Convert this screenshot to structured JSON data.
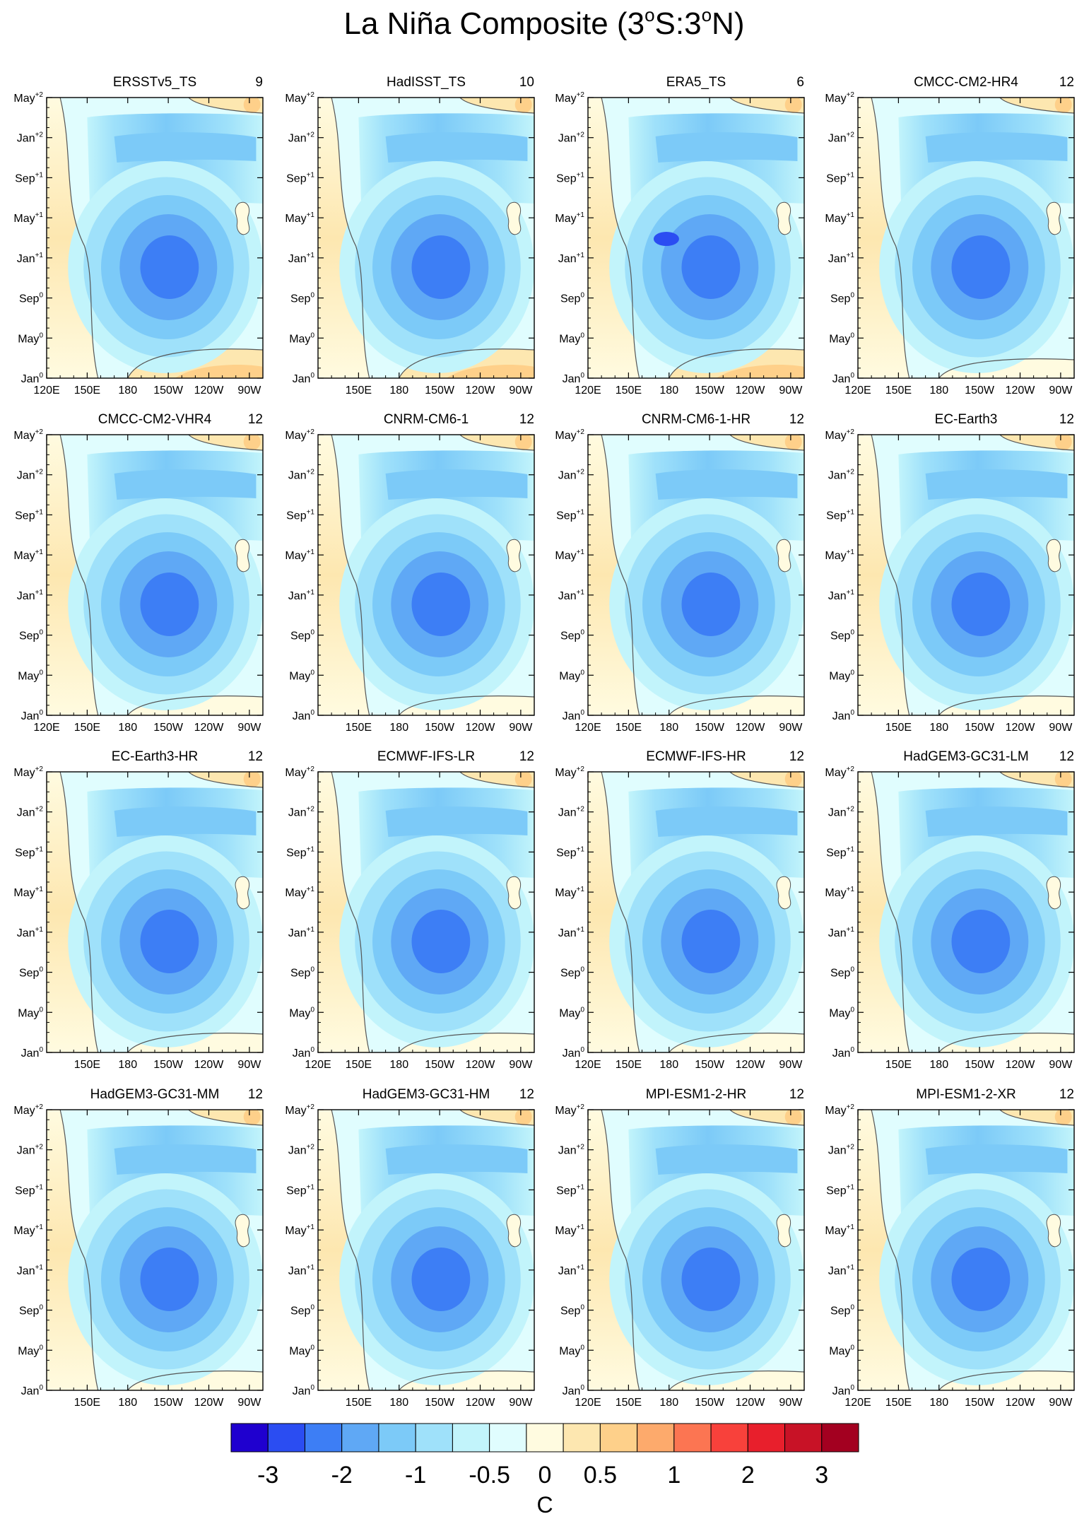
{
  "title": {
    "main": "La Niña Composite (3",
    "sup1": "o",
    "mid": "S:3",
    "sup2": "o",
    "end": "N)"
  },
  "y_ticks": [
    {
      "base": "Jan",
      "sup": "0"
    },
    {
      "base": "May",
      "sup": "0"
    },
    {
      "base": "Sep",
      "sup": "0"
    },
    {
      "base": "Jan",
      "sup": "+1"
    },
    {
      "base": "May",
      "sup": "+1"
    },
    {
      "base": "Sep",
      "sup": "+1"
    },
    {
      "base": "Jan",
      "sup": "+2"
    },
    {
      "base": "May",
      "sup": "+2"
    }
  ],
  "x_ticks_full": [
    "120E",
    "150E",
    "180",
    "150W",
    "120W",
    "90W"
  ],
  "x_ticks_short": [
    "150E",
    "180",
    "150W",
    "120W",
    "90W"
  ],
  "colorbar": {
    "colors": [
      "#1f00cf",
      "#2b4df2",
      "#3d7ef5",
      "#5fa8f5",
      "#7ccaf8",
      "#9fe1fa",
      "#c2f4fb",
      "#e0fdfe",
      "#fffbe0",
      "#fde7b0",
      "#fed08a",
      "#fdaa6c",
      "#fc7552",
      "#f8413b",
      "#e81f2c",
      "#c81226",
      "#a30020"
    ],
    "labels": [
      "-3",
      "-2",
      "-1",
      "-0.5",
      "0",
      "0.5",
      "1",
      "2",
      "3"
    ],
    "unit": "C"
  },
  "chart_data": {
    "type": "heatmap",
    "title": "La Niña Composite (3oS:3oN)",
    "xlabel": "",
    "ylabel": "",
    "x_range": [
      "120E",
      "80W"
    ],
    "y_range": [
      "Jan0",
      "May+2"
    ],
    "contour_levels": [
      -3,
      -2,
      -1,
      -0.5,
      0,
      0.5,
      1,
      2,
      3
    ],
    "unit": "C",
    "panels": [
      {
        "name": "ERSSTv5_TS",
        "count": "9",
        "xaxis": "full"
      },
      {
        "name": "HadISST_TS",
        "count": "10",
        "xaxis": "short"
      },
      {
        "name": "ERA5_TS",
        "count": "6",
        "xaxis": "full"
      },
      {
        "name": "CMCC-CM2-HR4",
        "count": "12",
        "xaxis": "full"
      },
      {
        "name": "CMCC-CM2-VHR4",
        "count": "12",
        "xaxis": "full"
      },
      {
        "name": "CNRM-CM6-1",
        "count": "12",
        "xaxis": "short"
      },
      {
        "name": "CNRM-CM6-1-HR",
        "count": "12",
        "xaxis": "full"
      },
      {
        "name": "EC-Earth3",
        "count": "12",
        "xaxis": "short"
      },
      {
        "name": "EC-Earth3-HR",
        "count": "12",
        "xaxis": "short"
      },
      {
        "name": "ECMWF-IFS-LR",
        "count": "12",
        "xaxis": "full"
      },
      {
        "name": "ECMWF-IFS-HR",
        "count": "12",
        "xaxis": "full"
      },
      {
        "name": "HadGEM3-GC31-LM",
        "count": "12",
        "xaxis": "short"
      },
      {
        "name": "HadGEM3-GC31-MM",
        "count": "12",
        "xaxis": "short"
      },
      {
        "name": "HadGEM3-GC31-HM",
        "count": "12",
        "xaxis": "short"
      },
      {
        "name": "MPI-ESM1-2-HR",
        "count": "12",
        "xaxis": "full"
      },
      {
        "name": "MPI-ESM1-2-XR",
        "count": "12",
        "xaxis": "full"
      }
    ]
  }
}
